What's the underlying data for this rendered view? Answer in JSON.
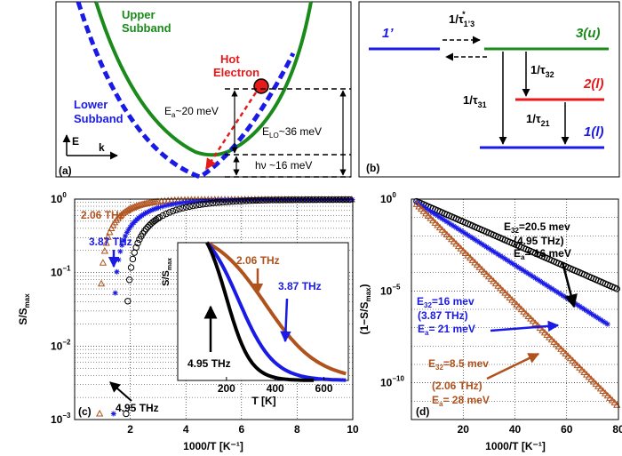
{
  "panels": {
    "a": {
      "label": "(a)",
      "upper_label": [
        "Upper",
        "Subband"
      ],
      "lower_label": [
        "Lower",
        "Subband"
      ],
      "hot_label": [
        "Hot",
        "Electron"
      ],
      "ea_pre": "E",
      "ea_sub": "a",
      "ea_post": "~20 meV",
      "elo_pre": "E",
      "elo_sub": "LO",
      "elo_post": "~36 meV",
      "hv_label": "hν ~16 meV",
      "axis_y": "E",
      "axis_x": "k",
      "colors": {
        "upper": "#1a8a1a",
        "lower": "#1a1ae6",
        "hot": "#e61a1a"
      }
    },
    "b": {
      "label": "(b)",
      "level_1p": "1’",
      "level_3": "3(u)",
      "level_2": "2(l)",
      "level_1": "1(l)",
      "t13_pre": "1/τ",
      "t13_sub": "1’3",
      "t13_sup": "*",
      "t32_pre": "1/τ",
      "t32_sub": "32",
      "t31_pre": "1/τ",
      "t31_sub": "31",
      "t21_pre": "1/τ",
      "t21_sub": "21",
      "colors": {
        "level1": "#1a1ae6",
        "level3": "#1a8a1a",
        "level2": "#e61a1a"
      }
    },
    "c": {
      "label": "(c)",
      "ylabel_main": "S/S",
      "ylabel_sub": "max",
      "xlabel": "1000/T [K⁻¹]",
      "xticks": [
        "2",
        "4",
        "6",
        "8",
        "10"
      ],
      "yticks": [
        {
          "base": "10",
          "exp": "0"
        },
        {
          "base": "10",
          "exp": "−1"
        },
        {
          "base": "10",
          "exp": "−2"
        },
        {
          "base": "10",
          "exp": "−3"
        }
      ],
      "annotations": [
        "2.06 THz",
        "3.87 THz",
        "4.95 THz"
      ],
      "inset": {
        "ylabel_main": "S/S",
        "ylabel_sub": "max",
        "xlabel": "T [K]",
        "xticks": [
          "200",
          "400",
          "600"
        ],
        "annotations": [
          "2.06 THz",
          "3.87 THz",
          "4.95 THz"
        ]
      }
    },
    "d": {
      "label": "(d)",
      "ylabel": "(1−S/S",
      "ylabel_sub": "max",
      "ylabel_end": ")",
      "xlabel": "1000/T [K⁻¹]",
      "xticks": [
        "20",
        "40",
        "60",
        "80"
      ],
      "yticks": [
        {
          "base": "10",
          "exp": "0"
        },
        {
          "base": "10",
          "exp": "−5"
        },
        {
          "base": "10",
          "exp": "−10"
        }
      ],
      "annotations": [
        {
          "e32": "E",
          "e32_sub": "32",
          "e32_val": "=20.5 mev",
          "freq": "(4.95 THz)",
          "ea": "E",
          "ea_sub": "a",
          "ea_val": "= 16  meV"
        },
        {
          "e32": "E",
          "e32_sub": "32",
          "e32_val": "=16 mev",
          "freq": "(3.87 THz)",
          "ea": "E",
          "ea_sub": "a",
          "ea_val": "= 21  meV"
        },
        {
          "e32": "E",
          "e32_sub": "32",
          "e32_val": "=8.5 mev",
          "freq": "(2.06 THz)",
          "ea": "E",
          "ea_sub": "a",
          "ea_val": "= 28  meV"
        }
      ]
    }
  },
  "chart_data": [
    {
      "type": "scatter",
      "panel": "c",
      "xlabel": "1000/T [K⁻¹]",
      "ylabel": "S/Smax",
      "xlim": [
        0,
        10
      ],
      "ylim": [
        0.001,
        1
      ],
      "yscale": "log",
      "grid": true,
      "series": [
        {
          "name": "2.06 THz",
          "color": "#b0521c",
          "marker": "triangle",
          "ea_meV": 28
        },
        {
          "name": "3.87 THz",
          "color": "#1a1ae6",
          "marker": "star",
          "ea_meV": 21
        },
        {
          "name": "4.95 THz",
          "color": "#000000",
          "marker": "circle",
          "ea_meV": 16
        }
      ]
    },
    {
      "type": "line",
      "panel": "c-inset",
      "xlabel": "T [K]",
      "ylabel": "S/Smax",
      "xlim": [
        0,
        700
      ],
      "ylim": [
        0,
        1
      ],
      "series": [
        {
          "name": "2.06 THz",
          "color": "#b0521c"
        },
        {
          "name": "3.87 THz",
          "color": "#1a1ae6"
        },
        {
          "name": "4.95 THz",
          "color": "#000000"
        }
      ]
    },
    {
      "type": "scatter",
      "panel": "d",
      "xlabel": "1000/T [K⁻¹]",
      "ylabel": "(1−S/Smax)",
      "xlim": [
        0,
        80
      ],
      "ylim": [
        1e-12,
        1
      ],
      "yscale": "log",
      "grid": true,
      "series": [
        {
          "name": "4.95 THz",
          "color": "#000000",
          "marker": "circle",
          "ea_meV": 16
        },
        {
          "name": "3.87 THz",
          "color": "#1a1ae6",
          "marker": "star",
          "ea_meV": 21
        },
        {
          "name": "2.06 THz",
          "color": "#b0521c",
          "marker": "triangle",
          "ea_meV": 28
        }
      ]
    }
  ]
}
